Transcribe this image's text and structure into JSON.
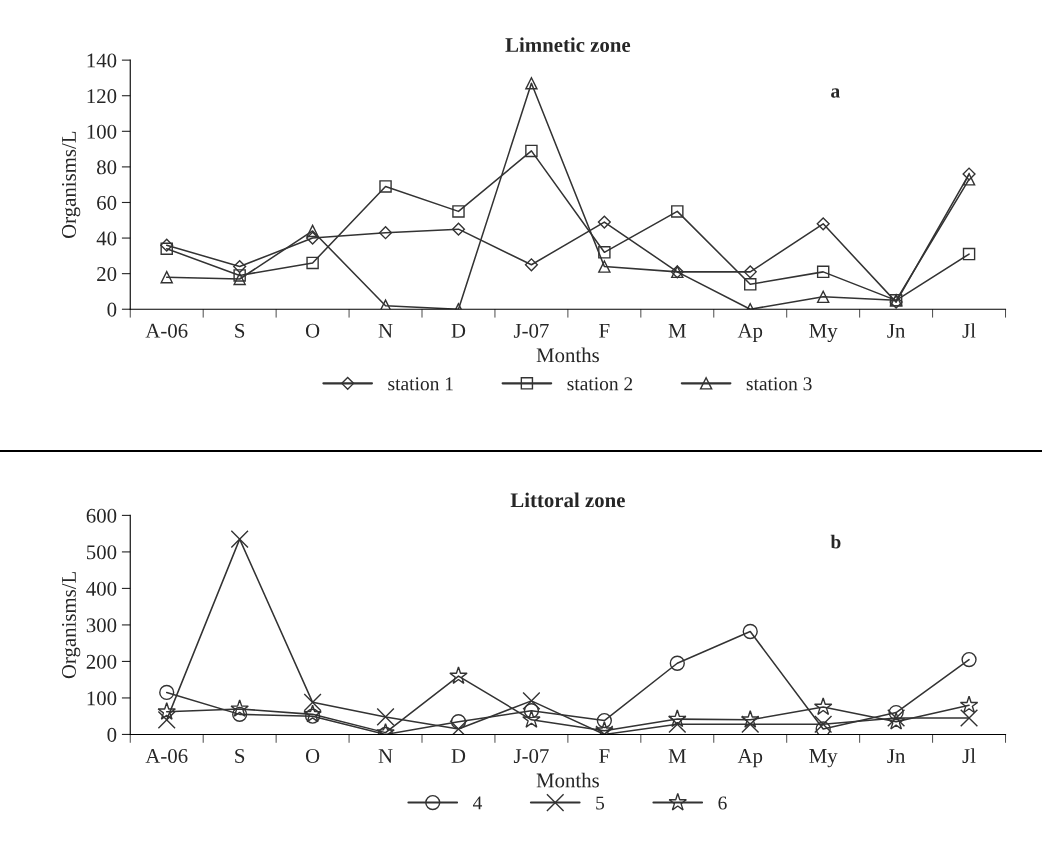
{
  "chart_data": [
    {
      "type": "line",
      "title": "Limnetic zone",
      "xlabel": "Months",
      "ylabel": "Organisms/L",
      "categories": [
        "A-06",
        "S",
        "O",
        "N",
        "D",
        "J-07",
        "F",
        "M",
        "Ap",
        "My",
        "Jn",
        "Jl"
      ],
      "ylim": [
        0,
        140
      ],
      "yticks": [
        0,
        20,
        40,
        60,
        80,
        100,
        120,
        140
      ],
      "grid": false,
      "legend": "bottom",
      "annotations": [
        "a"
      ],
      "series": [
        {
          "name": "station 1",
          "color": "#333333",
          "marker": "diamond",
          "values": [
            36,
            24,
            40,
            43,
            45,
            25,
            49,
            21,
            21,
            48,
            4,
            76
          ]
        },
        {
          "name": "station 2",
          "color": "#333333",
          "marker": "square",
          "values": [
            34,
            19,
            26,
            69,
            55,
            89,
            32,
            55,
            14,
            21,
            5,
            31
          ]
        },
        {
          "name": "station 3",
          "color": "#333333",
          "marker": "triangle",
          "values": [
            18,
            17,
            44,
            2,
            0,
            127,
            24,
            21,
            0,
            7,
            5,
            73
          ]
        }
      ]
    },
    {
      "type": "line",
      "title": "Littoral zone",
      "xlabel": "Months",
      "ylabel": "Organisms/L",
      "categories": [
        "A-06",
        "S",
        "O",
        "N",
        "D",
        "J-07",
        "F",
        "M",
        "Ap",
        "My",
        "Jn",
        "Jl"
      ],
      "ylim": [
        0,
        600
      ],
      "yticks": [
        0,
        100,
        200,
        300,
        400,
        500,
        600
      ],
      "grid": false,
      "legend": "bottom",
      "annotations": [
        "b"
      ],
      "series": [
        {
          "name": "4",
          "color": "#333333",
          "marker": "circle",
          "values": [
            115,
            55,
            50,
            0,
            35,
            65,
            38,
            195,
            282,
            15,
            60,
            205
          ]
        },
        {
          "name": "5",
          "color": "#333333",
          "marker": "cross",
          "values": [
            40,
            535,
            88,
            48,
            15,
            92,
            0,
            28,
            28,
            28,
            45,
            45
          ]
        },
        {
          "name": "6",
          "color": "#333333",
          "marker": "star",
          "values": [
            62,
            70,
            55,
            5,
            160,
            40,
            10,
            42,
            40,
            75,
            35,
            80
          ]
        }
      ]
    }
  ]
}
